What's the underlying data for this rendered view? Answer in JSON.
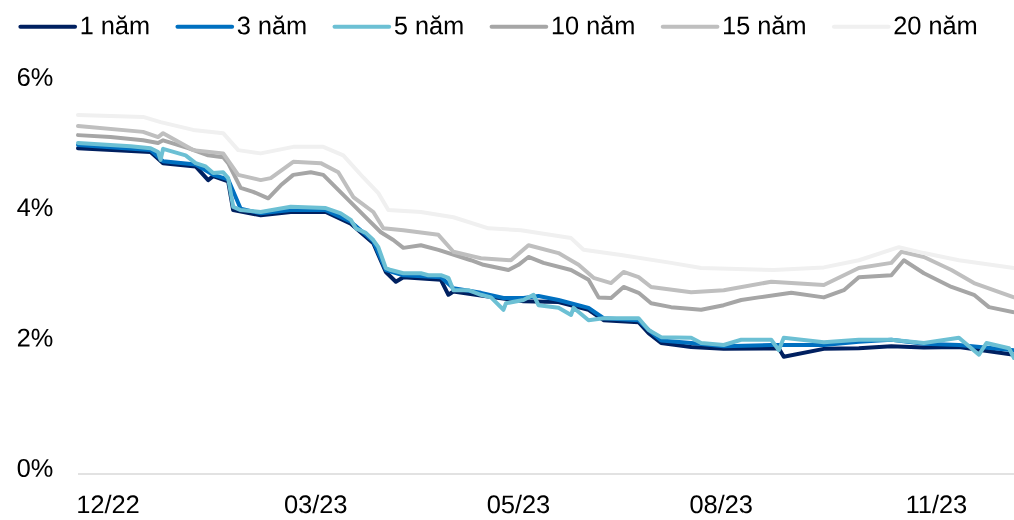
{
  "chart_data": {
    "type": "line",
    "xlim": [
      "2022-12-01",
      "2023-12-10"
    ],
    "ylim": [
      0,
      6
    ],
    "xticks": [
      {
        "value": "2022-12-13",
        "label": "12/22"
      },
      {
        "value": "2023-03-06",
        "label": "03/23"
      },
      {
        "value": "2023-05-26",
        "label": "05/23"
      },
      {
        "value": "2023-08-15",
        "label": "08/23"
      },
      {
        "value": "2023-11-09",
        "label": "11/23"
      }
    ],
    "yticks": [
      {
        "value": 0,
        "label": "0%"
      },
      {
        "value": 2,
        "label": "2%"
      },
      {
        "value": 4,
        "label": "4%"
      },
      {
        "value": 6,
        "label": "6%"
      }
    ],
    "legend": "top",
    "marker": "none",
    "line_style": "solid",
    "series": [
      {
        "name": "1 năm",
        "color": "#002060",
        "x": [
          "2022-12-01",
          "2022-12-30",
          "2023-01-04",
          "2023-01-17",
          "2023-01-22",
          "2023-01-24",
          "2023-01-30",
          "2023-02-01",
          "2023-02-12",
          "2023-02-24",
          "2023-03-10",
          "2023-03-20",
          "2023-03-29",
          "2023-04-03",
          "2023-04-07",
          "2023-04-10",
          "2023-04-25",
          "2023-04-28",
          "2023-04-30",
          "2023-05-11",
          "2023-05-28",
          "2023-06-11",
          "2023-06-23",
          "2023-06-29",
          "2023-07-13",
          "2023-07-17",
          "2023-07-22",
          "2023-08-03",
          "2023-08-16",
          "2023-09-07",
          "2023-09-09",
          "2023-09-25",
          "2023-10-09",
          "2023-10-22",
          "2023-11-04",
          "2023-11-18",
          "2023-12-10"
        ],
        "values": [
          5.0,
          4.94,
          4.77,
          4.72,
          4.51,
          4.57,
          4.49,
          4.05,
          3.97,
          4.02,
          4.02,
          3.84,
          3.54,
          3.1,
          2.95,
          3.02,
          2.98,
          2.75,
          2.8,
          2.74,
          2.65,
          2.64,
          2.52,
          2.36,
          2.33,
          2.16,
          2.01,
          1.95,
          1.92,
          1.93,
          1.8,
          1.92,
          1.93,
          1.96,
          1.94,
          1.95,
          1.83
        ]
      },
      {
        "name": "3 năm",
        "color": "#0070c0",
        "x": [
          "2022-12-01",
          "2022-12-30",
          "2023-01-04",
          "2023-01-17",
          "2023-01-24",
          "2023-01-30",
          "2023-02-04",
          "2023-02-12",
          "2023-02-24",
          "2023-03-10",
          "2023-03-20",
          "2023-03-29",
          "2023-04-03",
          "2023-04-10",
          "2023-04-25",
          "2023-04-30",
          "2023-05-11",
          "2023-05-20",
          "2023-05-28",
          "2023-06-03",
          "2023-06-11",
          "2023-06-23",
          "2023-06-29",
          "2023-07-13",
          "2023-07-17",
          "2023-07-22",
          "2023-08-03",
          "2023-08-16",
          "2023-09-04",
          "2023-09-25",
          "2023-10-09",
          "2023-10-22",
          "2023-11-04",
          "2023-11-18",
          "2023-12-10"
        ],
        "values": [
          5.05,
          4.97,
          4.8,
          4.75,
          4.59,
          4.52,
          4.07,
          4.0,
          4.05,
          4.05,
          3.87,
          3.57,
          3.13,
          3.05,
          3.02,
          2.85,
          2.78,
          2.7,
          2.7,
          2.73,
          2.67,
          2.55,
          2.39,
          2.36,
          2.21,
          2.05,
          2.01,
          1.96,
          1.98,
          1.98,
          2.03,
          2.06,
          2.0,
          1.98,
          1.9
        ]
      },
      {
        "name": "5 năm",
        "color": "#6cc0d4",
        "x": [
          "2022-12-01",
          "2022-12-22",
          "2022-12-30",
          "2023-01-02",
          "2023-01-03",
          "2023-01-04",
          "2023-01-13",
          "2023-01-17",
          "2023-01-21",
          "2023-01-24",
          "2023-01-28",
          "2023-01-30",
          "2023-02-01",
          "2023-02-04",
          "2023-02-12",
          "2023-02-24",
          "2023-03-10",
          "2023-03-16",
          "2023-03-20",
          "2023-03-22",
          "2023-03-26",
          "2023-03-29",
          "2023-03-31",
          "2023-04-03",
          "2023-04-05",
          "2023-04-10",
          "2023-04-17",
          "2023-04-20",
          "2023-04-25",
          "2023-04-28",
          "2023-04-30",
          "2023-05-06",
          "2023-05-11",
          "2023-05-15",
          "2023-05-20",
          "2023-05-21",
          "2023-05-28",
          "2023-06-01",
          "2023-06-03",
          "2023-06-11",
          "2023-06-16",
          "2023-06-17",
          "2023-06-23",
          "2023-06-29",
          "2023-07-13",
          "2023-07-17",
          "2023-07-22",
          "2023-08-03",
          "2023-08-07",
          "2023-08-16",
          "2023-08-23",
          "2023-09-04",
          "2023-09-07",
          "2023-09-09",
          "2023-09-25",
          "2023-10-09",
          "2023-10-22",
          "2023-11-04",
          "2023-11-18",
          "2023-11-26",
          "2023-11-29",
          "2023-12-08",
          "2023-12-10"
        ],
        "values": [
          5.08,
          5.03,
          5.0,
          4.94,
          4.82,
          4.99,
          4.89,
          4.77,
          4.72,
          4.62,
          4.63,
          4.54,
          4.1,
          4.05,
          4.02,
          4.1,
          4.08,
          4.0,
          3.9,
          3.77,
          3.7,
          3.59,
          3.48,
          3.16,
          3.13,
          3.08,
          3.08,
          3.05,
          3.05,
          3.01,
          2.82,
          2.82,
          2.75,
          2.71,
          2.52,
          2.62,
          2.67,
          2.75,
          2.59,
          2.55,
          2.44,
          2.55,
          2.36,
          2.39,
          2.39,
          2.21,
          2.1,
          2.09,
          2.01,
          1.98,
          2.06,
          2.06,
          1.9,
          2.09,
          2.02,
          2.06,
          2.06,
          2.01,
          2.09,
          1.83,
          2.01,
          1.93,
          1.78
        ]
      },
      {
        "name": "10 năm",
        "color": "#a6a6a6",
        "x": [
          "2022-12-01",
          "2022-12-14",
          "2022-12-27",
          "2023-01-02",
          "2023-01-04",
          "2023-01-14",
          "2023-01-22",
          "2023-01-28",
          "2023-01-30",
          "2023-02-04",
          "2023-02-09",
          "2023-02-15",
          "2023-02-20",
          "2023-02-25",
          "2023-03-04",
          "2023-03-09",
          "2023-03-15",
          "2023-03-21",
          "2023-03-27",
          "2023-04-01",
          "2023-04-06",
          "2023-04-10",
          "2023-04-17",
          "2023-04-24",
          "2023-05-07",
          "2023-05-12",
          "2023-05-22",
          "2023-05-26",
          "2023-05-30",
          "2023-06-05",
          "2023-06-16",
          "2023-06-23",
          "2023-06-27",
          "2023-07-02",
          "2023-07-07",
          "2023-07-13",
          "2023-07-18",
          "2023-07-26",
          "2023-08-07",
          "2023-08-16",
          "2023-08-23",
          "2023-08-30",
          "2023-09-12",
          "2023-09-25",
          "2023-10-03",
          "2023-10-09",
          "2023-10-22",
          "2023-10-27",
          "2023-11-04",
          "2023-11-15",
          "2023-11-24",
          "2023-11-30",
          "2023-12-10"
        ],
        "values": [
          5.2,
          5.17,
          5.12,
          5.08,
          5.12,
          5.0,
          4.89,
          4.86,
          4.77,
          4.39,
          4.33,
          4.23,
          4.43,
          4.59,
          4.63,
          4.59,
          4.36,
          4.13,
          3.9,
          3.71,
          3.59,
          3.47,
          3.51,
          3.44,
          3.28,
          3.21,
          3.13,
          3.21,
          3.33,
          3.24,
          3.13,
          2.98,
          2.71,
          2.7,
          2.87,
          2.78,
          2.62,
          2.56,
          2.52,
          2.59,
          2.67,
          2.71,
          2.78,
          2.71,
          2.82,
          3.02,
          3.05,
          3.28,
          3.08,
          2.87,
          2.75,
          2.56,
          2.48
        ]
      },
      {
        "name": "15 năm",
        "color": "#bfbfbf",
        "x": [
          "2022-12-01",
          "2022-12-27",
          "2023-01-02",
          "2023-01-04",
          "2023-01-16",
          "2023-01-28",
          "2023-02-03",
          "2023-02-12",
          "2023-02-16",
          "2023-02-25",
          "2023-03-08",
          "2023-03-15",
          "2023-03-21",
          "2023-03-29",
          "2023-04-02",
          "2023-04-10",
          "2023-04-24",
          "2023-04-30",
          "2023-05-11",
          "2023-05-23",
          "2023-05-30",
          "2023-06-11",
          "2023-06-19",
          "2023-06-25",
          "2023-07-02",
          "2023-07-07",
          "2023-07-13",
          "2023-07-18",
          "2023-08-03",
          "2023-08-16",
          "2023-09-04",
          "2023-09-25",
          "2023-10-09",
          "2023-10-22",
          "2023-10-26",
          "2023-11-04",
          "2023-11-15",
          "2023-11-24",
          "2023-12-10"
        ],
        "values": [
          5.34,
          5.25,
          5.17,
          5.23,
          4.97,
          4.92,
          4.59,
          4.51,
          4.54,
          4.79,
          4.77,
          4.63,
          4.25,
          4.02,
          3.77,
          3.74,
          3.67,
          3.41,
          3.31,
          3.28,
          3.51,
          3.39,
          3.21,
          3.01,
          2.93,
          3.1,
          3.02,
          2.87,
          2.79,
          2.82,
          2.95,
          2.9,
          3.16,
          3.24,
          3.41,
          3.33,
          3.13,
          2.93,
          2.71
        ]
      },
      {
        "name": "20 năm",
        "color": "#f0f0f0",
        "x": [
          "2022-12-01",
          "2022-12-27",
          "2023-01-03",
          "2023-01-16",
          "2023-01-28",
          "2023-02-03",
          "2023-02-12",
          "2023-02-25",
          "2023-03-09",
          "2023-03-17",
          "2023-03-25",
          "2023-03-31",
          "2023-04-04",
          "2023-04-17",
          "2023-04-30",
          "2023-05-14",
          "2023-05-27",
          "2023-06-16",
          "2023-06-21",
          "2023-07-06",
          "2023-07-26",
          "2023-08-07",
          "2023-09-05",
          "2023-09-25",
          "2023-10-09",
          "2023-10-25",
          "2023-11-04",
          "2023-11-18",
          "2023-12-10"
        ],
        "values": [
          5.51,
          5.48,
          5.4,
          5.28,
          5.23,
          4.97,
          4.92,
          5.02,
          5.02,
          4.89,
          4.55,
          4.31,
          4.05,
          4.02,
          3.94,
          3.77,
          3.74,
          3.62,
          3.44,
          3.36,
          3.24,
          3.16,
          3.13,
          3.17,
          3.28,
          3.48,
          3.39,
          3.28,
          3.16
        ]
      }
    ]
  }
}
